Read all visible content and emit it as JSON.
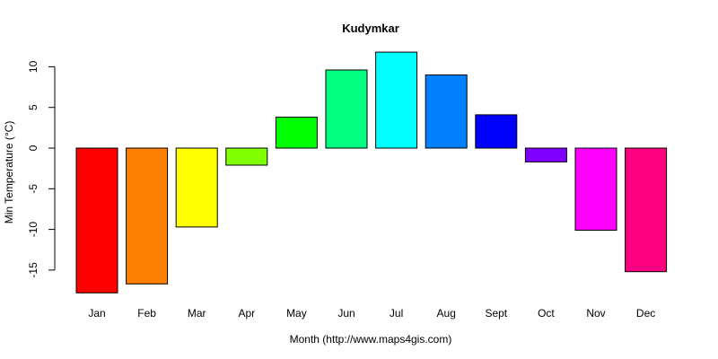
{
  "chart_data": {
    "type": "bar",
    "title": "Kudymkar",
    "xlabel": "Month (http://www.maps4gis.com)",
    "ylabel": "Min Temperature (°C)",
    "categories": [
      "Jan",
      "Feb",
      "Mar",
      "Apr",
      "May",
      "Jun",
      "Jul",
      "Aug",
      "Sept",
      "Oct",
      "Nov",
      "Dec"
    ],
    "values": [
      -17.8,
      -16.7,
      -9.7,
      -2.1,
      3.8,
      9.6,
      11.8,
      9.0,
      4.1,
      -1.7,
      -10.1,
      -15.2
    ],
    "colors": [
      "#FF0000",
      "#FF8000",
      "#FFFF00",
      "#80FF00",
      "#00FF00",
      "#00FF80",
      "#00FFFF",
      "#0080FF",
      "#0000FF",
      "#8000FF",
      "#FF00FF",
      "#FF0080"
    ],
    "yticks": [
      -15,
      -10,
      -5,
      0,
      5,
      10
    ],
    "ytick_labels": [
      "-15",
      "-10",
      "-5",
      "0",
      "5",
      "10"
    ],
    "ylim": [
      -17.8,
      11.8
    ],
    "grid": false,
    "legend": false
  }
}
